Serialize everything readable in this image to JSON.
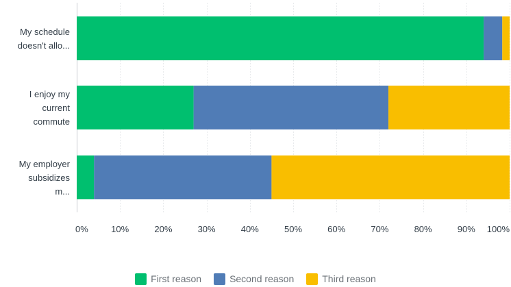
{
  "chart_data": {
    "type": "bar",
    "orientation": "horizontal",
    "stacked": true,
    "title": "",
    "xlabel": "",
    "ylabel": "",
    "xlim": [
      0,
      100
    ],
    "x_ticks": [
      "0%",
      "10%",
      "20%",
      "30%",
      "40%",
      "50%",
      "60%",
      "70%",
      "80%",
      "90%",
      "100%"
    ],
    "grid": true,
    "legend_position": "bottom",
    "categories": [
      [
        "My schedule",
        "doesn't allo..."
      ],
      [
        "I enjoy my",
        "current",
        "commute"
      ],
      [
        "My employer",
        "subsidizes",
        "m..."
      ]
    ],
    "series": [
      {
        "name": "First reason",
        "color": "#00bf6f",
        "values": [
          94,
          27,
          4
        ]
      },
      {
        "name": "Second reason",
        "color": "#507cb6",
        "values": [
          4.3,
          45,
          41
        ]
      },
      {
        "name": "Third reason",
        "color": "#f9be00",
        "values": [
          1.7,
          28,
          55
        ]
      }
    ]
  }
}
